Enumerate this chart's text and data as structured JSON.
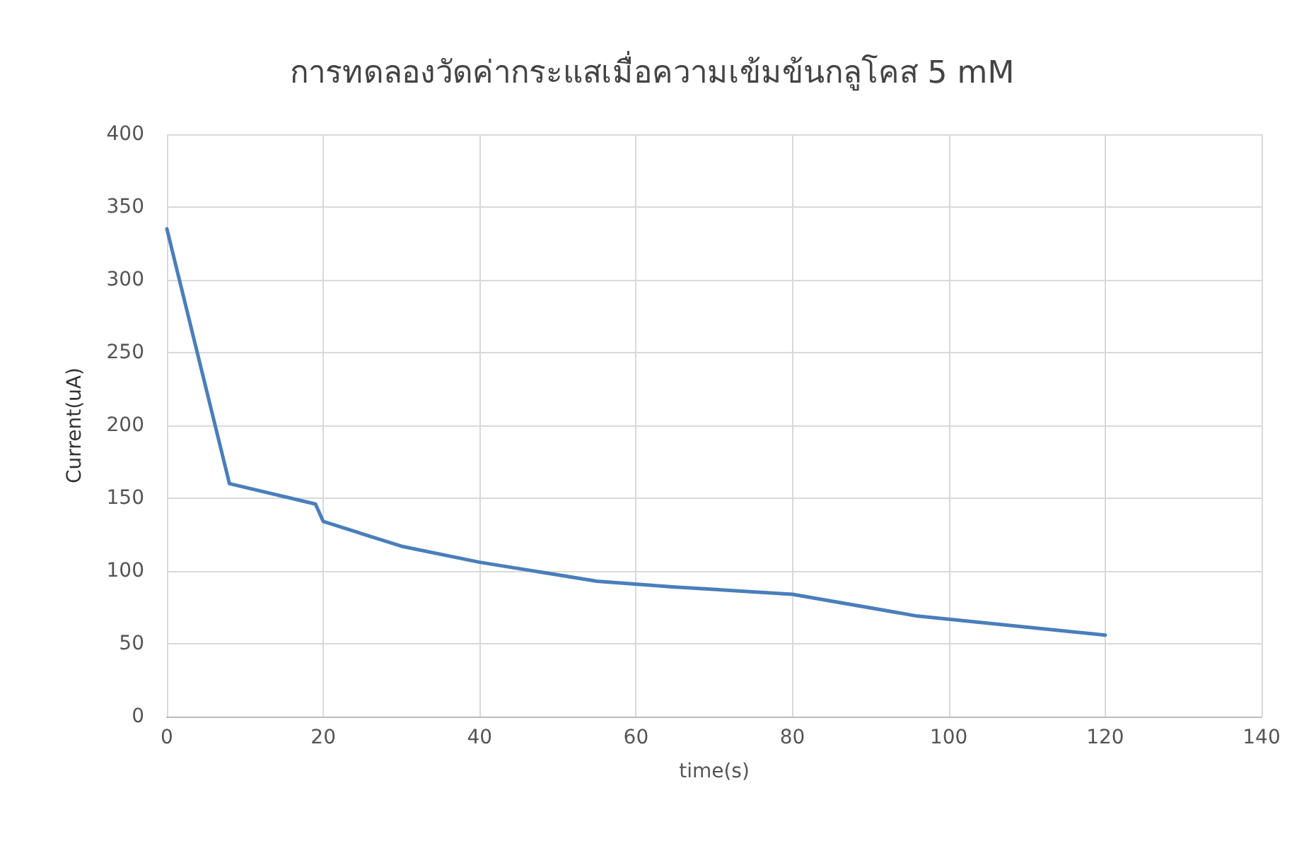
{
  "chart_data": {
    "type": "line",
    "title": "การทดลองวัดค่ากระแสเมื่อความเข้มข้นกลูโคส 5 mM",
    "xlabel": "time(s)",
    "ylabel": "Current(uA)",
    "x": [
      0,
      8,
      19,
      20,
      30,
      40,
      55,
      65,
      80,
      96,
      120
    ],
    "series": [
      {
        "color": "#4a7ebb",
        "values": [
          335,
          160,
          146,
          134,
          117,
          106,
          93,
          89,
          84,
          69,
          56
        ]
      }
    ],
    "xlim": [
      0,
      140
    ],
    "xticks": [
      0,
      20,
      40,
      60,
      80,
      100,
      120,
      140
    ],
    "ylim": [
      0,
      400
    ],
    "yticks": [
      0,
      50,
      100,
      150,
      200,
      250,
      300,
      350,
      400
    ],
    "grid": true,
    "marker": "none",
    "line_style": "solid"
  }
}
